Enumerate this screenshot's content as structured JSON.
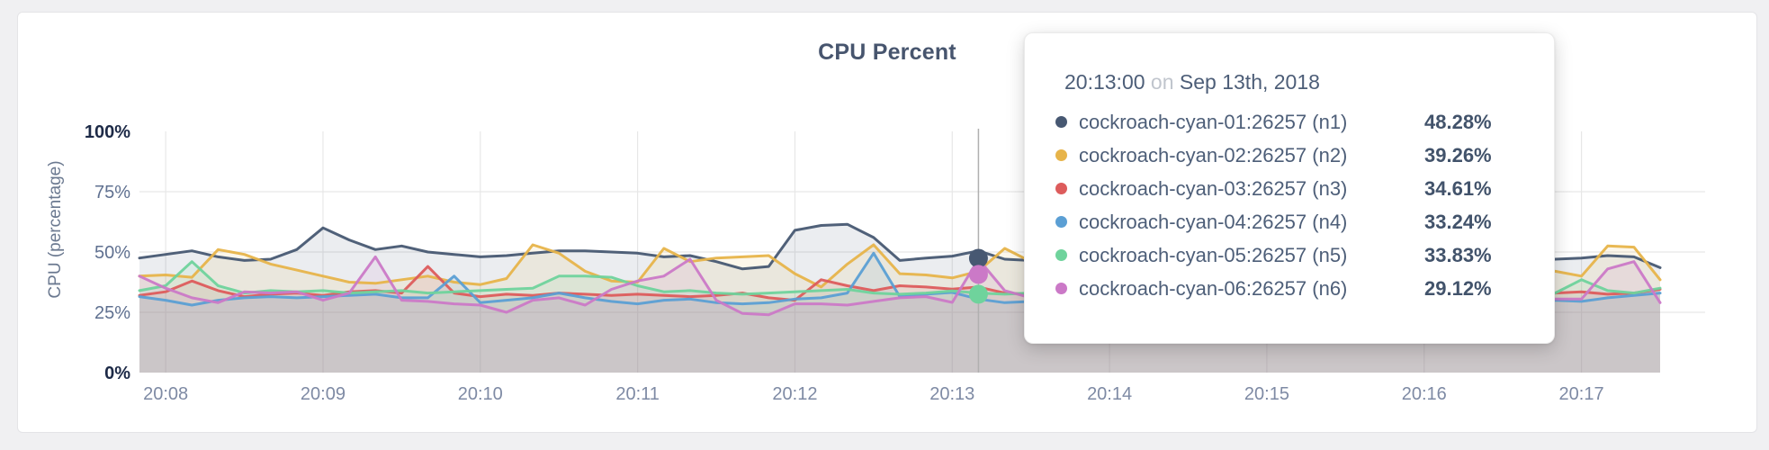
{
  "card": {
    "background": "#ffffff",
    "border_color": "#e4e4e7"
  },
  "chart_data": {
    "type": "line",
    "title": "CPU Percent",
    "xlabel": "",
    "ylabel": "CPU (percentage)",
    "ylim": [
      0,
      100
    ],
    "grid": true,
    "area_fill": true,
    "legend_position": "none",
    "x_start_time": "20:07:50",
    "x_end_time": "20:17:30",
    "x_interval_seconds": 10,
    "y_ticks": [
      {
        "label": "0%",
        "value": 0,
        "emphasis": true
      },
      {
        "label": "25%",
        "value": 25,
        "emphasis": false
      },
      {
        "label": "50%",
        "value": 50,
        "emphasis": false
      },
      {
        "label": "75%",
        "value": 75,
        "emphasis": false
      },
      {
        "label": "100%",
        "value": 100,
        "emphasis": true
      }
    ],
    "x_ticks": [
      {
        "label": "20:08",
        "seconds": 10
      },
      {
        "label": "20:09",
        "seconds": 70
      },
      {
        "label": "20:10",
        "seconds": 130
      },
      {
        "label": "20:11",
        "seconds": 190
      },
      {
        "label": "20:12",
        "seconds": 250
      },
      {
        "label": "20:13",
        "seconds": 310
      },
      {
        "label": "20:14",
        "seconds": 370
      },
      {
        "label": "20:15",
        "seconds": 430
      },
      {
        "label": "20:16",
        "seconds": 490
      },
      {
        "label": "20:17",
        "seconds": 550
      }
    ],
    "series": [
      {
        "name": "cockroach-cyan-01:26257 (n1)",
        "color": "#475872",
        "values": [
          47.5,
          49,
          50.5,
          48,
          46.5,
          47,
          51,
          60,
          55,
          51,
          52.5,
          50,
          49,
          48,
          48.5,
          49.5,
          50.5,
          50.5,
          50,
          49.5,
          48,
          48.5,
          46,
          43,
          44,
          59,
          61,
          61.5,
          56,
          46.5,
          47.5,
          48.28,
          50.5,
          47,
          46.5,
          46,
          46.5,
          47,
          46,
          46.5,
          47,
          46,
          46.5,
          47,
          46.5,
          46,
          46.5,
          47,
          46.5,
          46,
          46.5,
          47,
          46.5,
          46,
          47,
          47.5,
          48.5,
          48,
          43.5
        ]
      },
      {
        "name": "cockroach-cyan-02:26257 (n2)",
        "color": "#e7b44a",
        "values": [
          40,
          40.5,
          39.5,
          51,
          49,
          45,
          42.5,
          40,
          37.5,
          37,
          38.5,
          40,
          37.5,
          36.5,
          39,
          53,
          49.5,
          42,
          38,
          37.5,
          51.5,
          46,
          47.5,
          48,
          48.5,
          41,
          35.5,
          45,
          53,
          41,
          40.5,
          39.26,
          42,
          51.5,
          46,
          43,
          42,
          41.5,
          42,
          42.5,
          42,
          41.5,
          42,
          42.5,
          42,
          41.5,
          42,
          42.5,
          42,
          41.5,
          42,
          42.5,
          42,
          41.5,
          42,
          40,
          52.5,
          52,
          38.5
        ]
      },
      {
        "name": "cockroach-cyan-03:26257 (n3)",
        "color": "#dd5c5c",
        "values": [
          32,
          33.5,
          38,
          34,
          31.5,
          32.5,
          33,
          32,
          33.5,
          34,
          33,
          44,
          33,
          31.5,
          32.5,
          32,
          33,
          32.5,
          32,
          32.5,
          32,
          31.5,
          32,
          33,
          31,
          30,
          38.5,
          36,
          34,
          36,
          35.5,
          34.61,
          35.5,
          33,
          32.5,
          32,
          32.5,
          33,
          32,
          32.5,
          33,
          32,
          32.5,
          33,
          32.5,
          32,
          32.5,
          33,
          32.5,
          32,
          32.5,
          33,
          32.5,
          32,
          33,
          33.5,
          32.5,
          33,
          34.5
        ]
      },
      {
        "name": "cockroach-cyan-04:26257 (n4)",
        "color": "#5b9fd4",
        "values": [
          31.5,
          30,
          28,
          30,
          31,
          31.5,
          31,
          31.5,
          32,
          32.5,
          31,
          31,
          40,
          29,
          30,
          31,
          33,
          31,
          29.5,
          28.5,
          30,
          30.5,
          29,
          28.5,
          29,
          30.5,
          31,
          33,
          49.5,
          31.5,
          32.5,
          33.24,
          30.5,
          29,
          29.5,
          30,
          29.5,
          29,
          30,
          29.5,
          29,
          30,
          29.5,
          29,
          30,
          29.5,
          29,
          30,
          29.5,
          29,
          30,
          29.5,
          29,
          29.5,
          30,
          29.5,
          31,
          32,
          33
        ]
      },
      {
        "name": "cockroach-cyan-05:26257 (n5)",
        "color": "#6fd39c",
        "values": [
          34,
          36,
          46,
          36,
          33,
          34,
          33.5,
          34,
          33,
          33.5,
          34,
          33,
          33.5,
          34,
          34.5,
          35,
          40,
          40,
          39.5,
          36,
          33.5,
          34,
          33,
          32.5,
          33,
          33.5,
          34,
          34.5,
          33,
          32.5,
          33,
          33.83,
          33,
          32.5,
          33,
          33.5,
          33,
          32.5,
          33,
          33.5,
          33,
          32.5,
          33,
          33.5,
          33,
          32.5,
          33,
          33.5,
          33,
          32.5,
          33,
          33.5,
          33,
          32.5,
          33,
          38.5,
          34,
          33,
          35
        ]
      },
      {
        "name": "cockroach-cyan-06:26257 (n6)",
        "color": "#cb79c7",
        "values": [
          40,
          35,
          31,
          29,
          33.5,
          33,
          33.5,
          30,
          33,
          48,
          30,
          29.5,
          28.5,
          28,
          25,
          30,
          31,
          28,
          34.5,
          38,
          40,
          47,
          30,
          24.5,
          24,
          28.5,
          28.5,
          28,
          29.5,
          31,
          31.5,
          29.12,
          47,
          34,
          31,
          30,
          30.5,
          31,
          30.5,
          30,
          30.5,
          31,
          30.5,
          30,
          30.5,
          31,
          30.5,
          30,
          30.5,
          31,
          30.5,
          30,
          30.5,
          31,
          30.5,
          30.5,
          43,
          46,
          29
        ]
      }
    ]
  },
  "hover": {
    "guideline_seconds": 320,
    "guideline_color": "#b0b0b0",
    "markers": [
      {
        "series": 0,
        "value": 47.4
      },
      {
        "series": 5,
        "value": 40.7
      },
      {
        "series": 4,
        "value": 32.5
      }
    ]
  },
  "tooltip": {
    "time": "20:13:00",
    "conjunction": "on",
    "date": "Sep 13th, 2018",
    "values": [
      "48.28%",
      "39.26%",
      "34.61%",
      "33.24%",
      "33.83%",
      "29.12%"
    ]
  },
  "style": {
    "grid_color": "#e7e7e7",
    "axis_label_color": "#5f7090",
    "axis_minmax_color": "#1d2a47",
    "x_label_color": "#7e8aa4",
    "fill_opacity": 0.11
  }
}
